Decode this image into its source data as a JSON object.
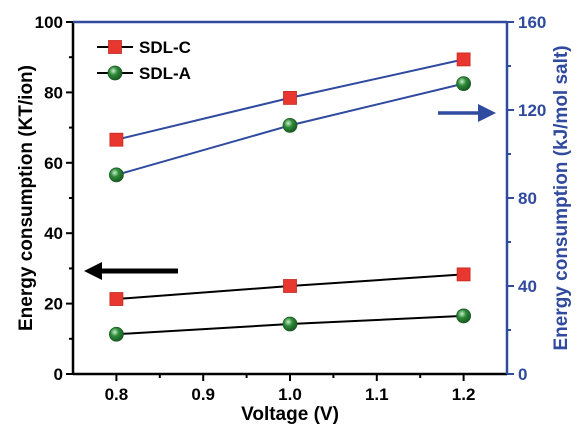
{
  "colors": {
    "right_axis": "#2f4a9e",
    "left_axis": "#000000",
    "sdl_c_marker": "#e8372f",
    "sdl_a_marker": "#2e8b3a",
    "line_left": "#000000",
    "line_right": "#2f4a9e"
  },
  "chart_data": {
    "type": "line",
    "title": "",
    "xlabel": "Voltage (V)",
    "ylabel_left": "Energy consumption (KT/ion)",
    "ylabel_right": "Energy consumption (kJ/mol salt)",
    "xlim": [
      0.75,
      1.25
    ],
    "ylim_left": [
      0,
      100
    ],
    "ylim_right": [
      0,
      160
    ],
    "x_ticks": [
      "0.8",
      "0.9",
      "1.0",
      "1.1",
      "1.2"
    ],
    "y_ticks_left": [
      "0",
      "20",
      "40",
      "60",
      "80",
      "100"
    ],
    "y_ticks_right": [
      "0",
      "40",
      "80",
      "120",
      "160"
    ],
    "legend_position": "top-left",
    "x": [
      0.8,
      1.0,
      1.2
    ],
    "series": [
      {
        "name": "SDL-C",
        "axis": "left",
        "marker": "square",
        "values": [
          21.3,
          25.0,
          28.3
        ]
      },
      {
        "name": "SDL-A",
        "axis": "left",
        "marker": "circle",
        "values": [
          11.3,
          14.2,
          16.5
        ]
      },
      {
        "name": "SDL-C",
        "axis": "right",
        "marker": "square",
        "values": [
          106.5,
          125.5,
          143.0
        ]
      },
      {
        "name": "SDL-A",
        "axis": "right",
        "marker": "circle",
        "values": [
          90.5,
          113.0,
          132.0
        ]
      }
    ],
    "annotations": [
      {
        "type": "arrow",
        "direction": "left",
        "meaning": "left-axis"
      },
      {
        "type": "arrow",
        "direction": "right",
        "meaning": "right-axis"
      }
    ]
  }
}
